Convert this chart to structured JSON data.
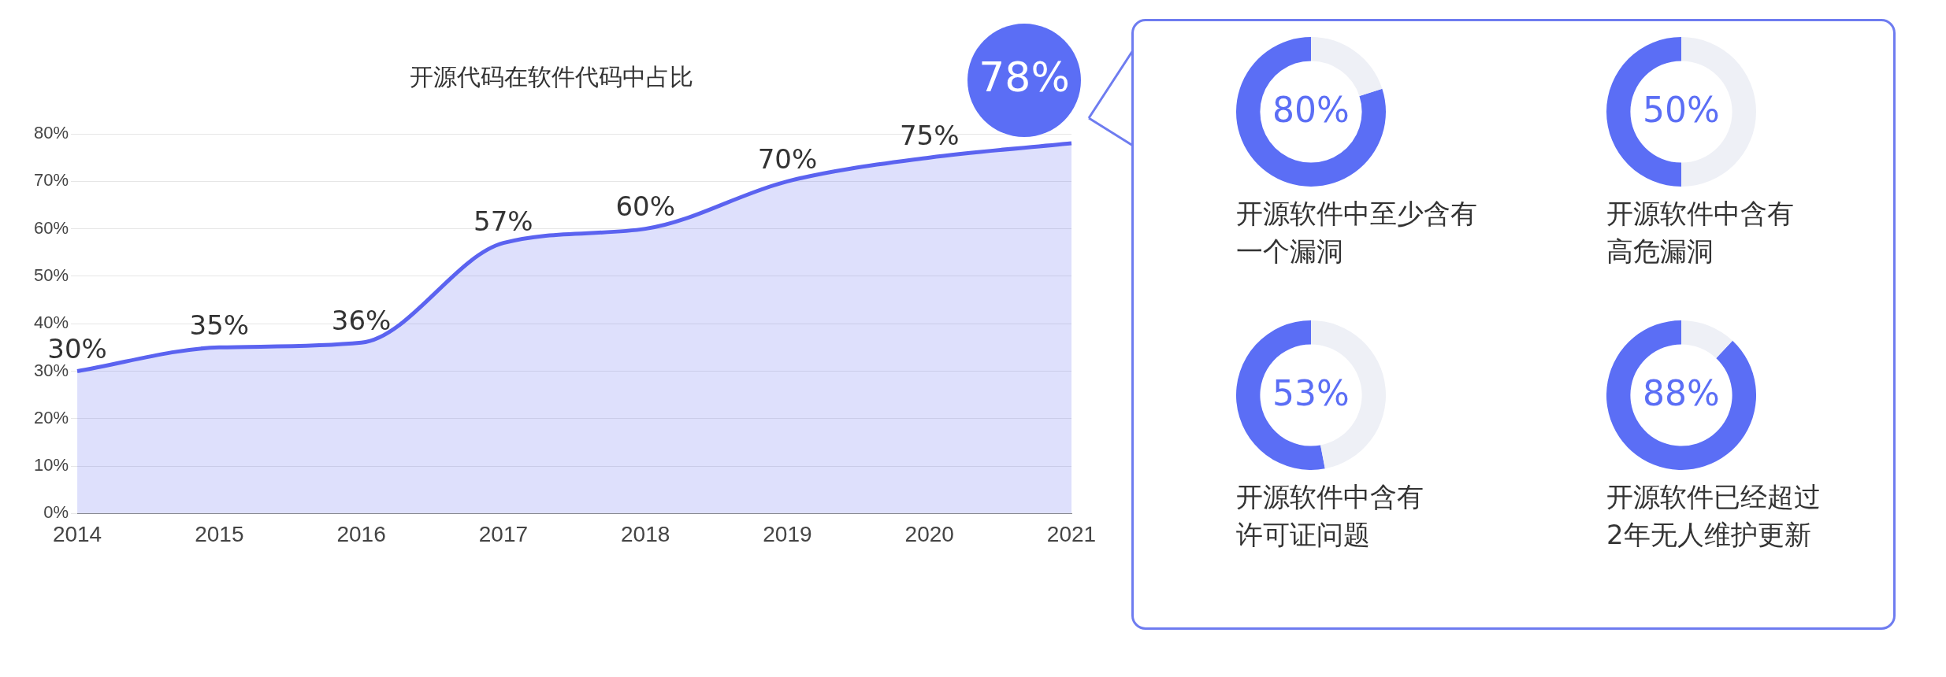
{
  "chart_data": [
    {
      "type": "area",
      "title": "开源代码在软件代码中占比",
      "categories": [
        "2014",
        "2015",
        "2016",
        "2017",
        "2018",
        "2019",
        "2020",
        "2021"
      ],
      "series": [
        {
          "color": "#5b63f0",
          "values": [
            30,
            35,
            36,
            57,
            60,
            70,
            75,
            78
          ]
        }
      ],
      "value_labels": [
        "30%",
        "35%",
        "36%",
        "57%",
        "60%",
        "70%",
        "75%",
        "78%"
      ],
      "ylim": [
        0,
        80
      ],
      "yticks": [
        {
          "value": 0,
          "label": "0%"
        },
        {
          "value": 10,
          "label": "10%"
        },
        {
          "value": 20,
          "label": "20%"
        },
        {
          "value": 30,
          "label": "30%"
        },
        {
          "value": 40,
          "label": "40%"
        },
        {
          "value": 50,
          "label": "50%"
        },
        {
          "value": 60,
          "label": "60%"
        },
        {
          "value": 70,
          "label": "70%"
        },
        {
          "value": 80,
          "label": "80%"
        }
      ],
      "grid": "y"
    },
    {
      "type": "donut",
      "title": "开源软件中至少含有一个漏洞",
      "categories": [
        null,
        null
      ],
      "values": [
        80,
        20
      ],
      "colors": [
        "#5b6ef5",
        "#eef0f6"
      ],
      "value_labels": [
        "80%",
        null
      ]
    },
    {
      "type": "donut",
      "title": "开源软件中含有高危漏洞",
      "categories": [
        null,
        null
      ],
      "values": [
        50,
        50
      ],
      "colors": [
        "#5b6ef5",
        "#eef0f6"
      ],
      "value_labels": [
        "50%",
        null
      ]
    },
    {
      "type": "donut",
      "title": "开源软件中含有许可证问题",
      "categories": [
        null,
        null
      ],
      "values": [
        53,
        47
      ],
      "colors": [
        "#5b6ef5",
        "#eef0f6"
      ],
      "value_labels": [
        "53%",
        null
      ]
    },
    {
      "type": "donut",
      "title": "开源软件已经超过2年无人维护更新",
      "categories": [
        null,
        null
      ],
      "values": [
        88,
        12
      ],
      "colors": [
        "#5b6ef5",
        "#eef0f6"
      ],
      "value_labels": [
        "88%",
        null
      ]
    }
  ]
}
